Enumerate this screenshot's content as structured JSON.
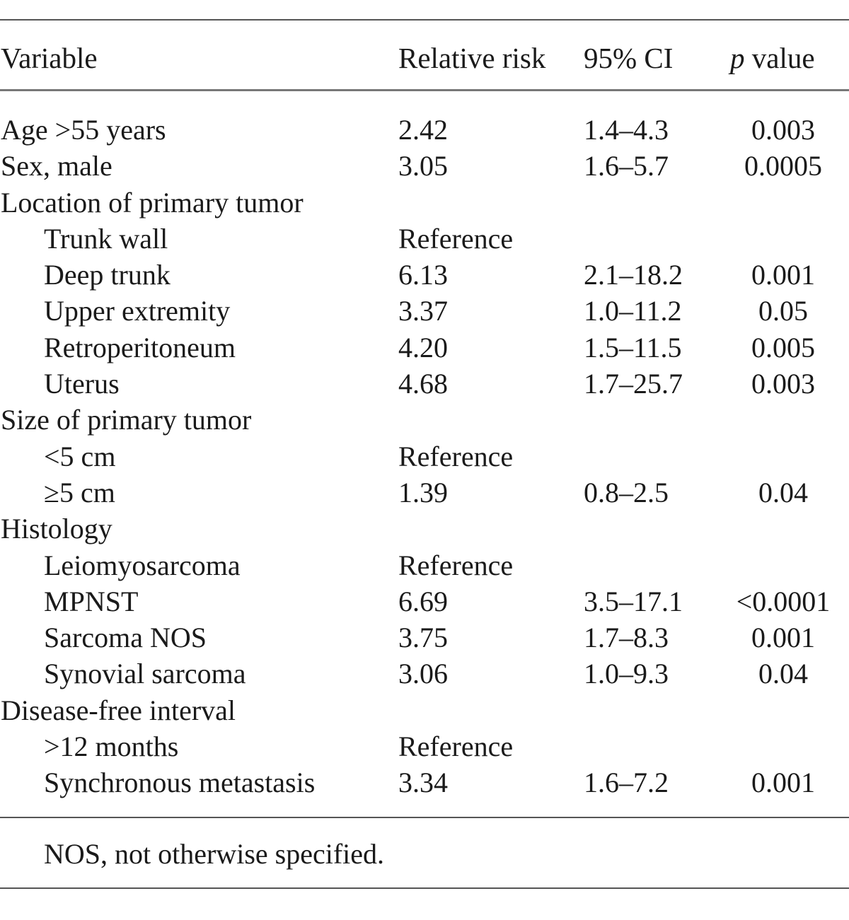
{
  "table": {
    "headers": {
      "variable": "Variable",
      "relative_risk": "Relative risk",
      "ci": "95% CI",
      "p_italic": "p",
      "p_rest": " value"
    },
    "rows": [
      {
        "variable": "Age >55 years",
        "indent": false,
        "rr": "2.42",
        "ci": "1.4–4.3",
        "p": "0.003"
      },
      {
        "variable": "Sex, male",
        "indent": false,
        "rr": "3.05",
        "ci": "1.6–5.7",
        "p": "0.0005"
      },
      {
        "variable": "Location of primary tumor",
        "indent": false,
        "rr": "",
        "ci": "",
        "p": ""
      },
      {
        "variable": "Trunk wall",
        "indent": true,
        "rr": "Reference",
        "ci": "",
        "p": ""
      },
      {
        "variable": "Deep trunk",
        "indent": true,
        "rr": "6.13",
        "ci": "2.1–18.2",
        "p": "0.001"
      },
      {
        "variable": "Upper extremity",
        "indent": true,
        "rr": "3.37",
        "ci": "1.0–11.2",
        "p": "0.05"
      },
      {
        "variable": "Retroperitoneum",
        "indent": true,
        "rr": "4.20",
        "ci": "1.5–11.5",
        "p": "0.005"
      },
      {
        "variable": "Uterus",
        "indent": true,
        "rr": "4.68",
        "ci": "1.7–25.7",
        "p": "0.003"
      },
      {
        "variable": "Size of primary tumor",
        "indent": false,
        "rr": "",
        "ci": "",
        "p": ""
      },
      {
        "variable": "<5 cm",
        "indent": true,
        "rr": "Reference",
        "ci": "",
        "p": ""
      },
      {
        "variable": "≥5 cm",
        "indent": true,
        "rr": "1.39",
        "ci": "0.8–2.5",
        "p": "0.04"
      },
      {
        "variable": "Histology",
        "indent": false,
        "rr": "",
        "ci": "",
        "p": ""
      },
      {
        "variable": "Leiomyosarcoma",
        "indent": true,
        "rr": "Reference",
        "ci": "",
        "p": ""
      },
      {
        "variable": "MPNST",
        "indent": true,
        "rr": "6.69",
        "ci": "3.5–17.1",
        "p": "<0.0001"
      },
      {
        "variable": "Sarcoma NOS",
        "indent": true,
        "rr": "3.75",
        "ci": "1.7–8.3",
        "p": "0.001"
      },
      {
        "variable": "Synovial sarcoma",
        "indent": true,
        "rr": "3.06",
        "ci": "1.0–9.3",
        "p": "0.04"
      },
      {
        "variable": "Disease-free interval",
        "indent": false,
        "rr": "",
        "ci": "",
        "p": ""
      },
      {
        "variable": ">12 months",
        "indent": true,
        "rr": "Reference",
        "ci": "",
        "p": ""
      },
      {
        "variable": "Synchronous metastasis",
        "indent": true,
        "rr": "3.34",
        "ci": "1.6–7.2",
        "p": "0.001"
      }
    ],
    "footnote": "NOS, not otherwise specified."
  }
}
